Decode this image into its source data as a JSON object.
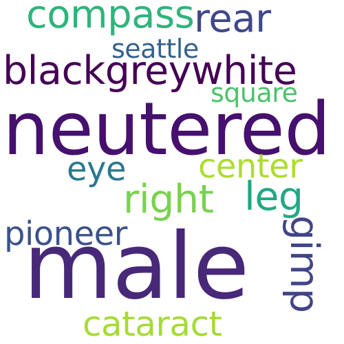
{
  "words": [
    {
      "id": "compass",
      "text": "compass",
      "color": "#2fb47c"
    },
    {
      "id": "rear",
      "text": "rear",
      "color": "#3f4889"
    },
    {
      "id": "seattle",
      "text": "seattle",
      "color": "#34618d"
    },
    {
      "id": "blackgreywhite",
      "text": "blackgreywhite",
      "color": "#440154"
    },
    {
      "id": "square",
      "text": "square",
      "color": "#4cc26c"
    },
    {
      "id": "neutered",
      "text": "neutered",
      "color": "#46106e"
    },
    {
      "id": "eye",
      "text": "eye",
      "color": "#2a788e"
    },
    {
      "id": "center",
      "text": "center",
      "color": "#addc30"
    },
    {
      "id": "right",
      "text": "right",
      "color": "#7ad151"
    },
    {
      "id": "leg",
      "text": "leg",
      "color": "#22a884"
    },
    {
      "id": "pioneer",
      "text": "pioneer",
      "color": "#3b528b"
    },
    {
      "id": "gimp",
      "text": "gimp",
      "color": "#414487"
    },
    {
      "id": "male",
      "text": "male",
      "color": "#482878"
    },
    {
      "id": "cataract",
      "text": "cataract",
      "color": "#a5db36"
    }
  ]
}
